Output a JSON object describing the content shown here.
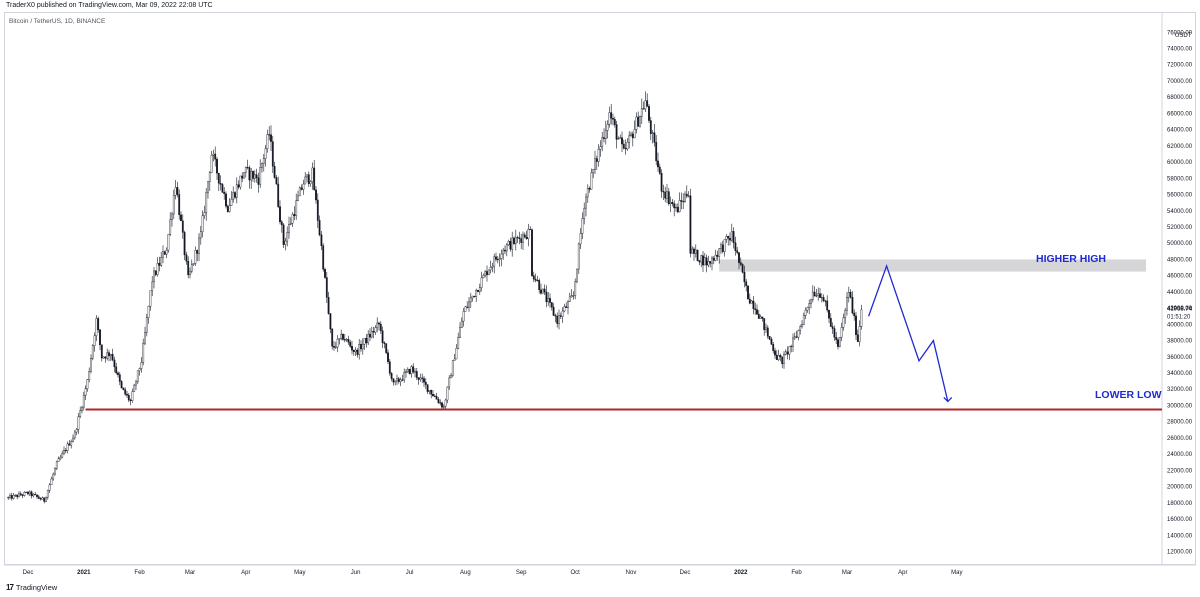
{
  "header": {
    "published": "TraderX0 published on TradingView.com, Mar 09, 2022 22:08 UTC",
    "symbol": "Bitcoin / TetherUS, 1D, BINANCE"
  },
  "footer": {
    "brand": "TradingView",
    "logo_glyph": "17"
  },
  "price_scale": {
    "unit": "USDT",
    "current_price": "41958.74",
    "countdown": "01:51:20"
  },
  "annotations": {
    "higher_high": "HIGHER HIGH",
    "lower_low": "LOWER LOW"
  },
  "colors": {
    "up": "#ffffff",
    "down": "#131722",
    "support_line": "#b2242e",
    "resistance_zone": "#d6d6d8",
    "projection": "#1f2bd1"
  },
  "chart_data": {
    "type": "candlestick",
    "title": "Bitcoin / TetherUS, 1D, BINANCE",
    "ylim": [
      10000,
      76000
    ],
    "y_ticks": [
      12000,
      14000,
      16000,
      18000,
      20000,
      22000,
      24000,
      26000,
      28000,
      30000,
      32000,
      34000,
      36000,
      38000,
      40000,
      42000,
      44000,
      46000,
      48000,
      50000,
      52000,
      54000,
      56000,
      58000,
      60000,
      62000,
      64000,
      66000,
      68000,
      70000,
      72000,
      74000
    ],
    "y_tick_labels": [
      "12000.00",
      "14000.00",
      "16000.00",
      "18000.00",
      "20000.00",
      "22000.00",
      "24000.00",
      "26000.00",
      "28000.00",
      "30000.00",
      "32000.00",
      "34000.00",
      "36000.00",
      "38000.00",
      "40000.00",
      "42000.00",
      "44000.00",
      "46000.00",
      "48000.00",
      "50000.00",
      "52000.00",
      "54000.00",
      "56000.00",
      "58000.00",
      "60000.00",
      "62000.00",
      "64000.00",
      "66000.00",
      "68000.00",
      "70000.00",
      "72000.00",
      "74000.00"
    ],
    "top_partial_label": "76000.00",
    "x_tick_labels": [
      "Dec",
      "2021",
      "Feb",
      "Mar",
      "Apr",
      "May",
      "Jun",
      "Jul",
      "Aug",
      "Sep",
      "Oct",
      "Nov",
      "Dec",
      "2022",
      "Feb",
      "Mar",
      "Apr",
      "May"
    ],
    "x_tick_dates": [
      "2020-12-01",
      "2021-01-01",
      "2021-02-01",
      "2021-03-01",
      "2021-04-01",
      "2021-05-01",
      "2021-06-01",
      "2021-07-01",
      "2021-08-01",
      "2021-09-01",
      "2021-10-01",
      "2021-11-01",
      "2021-12-01",
      "2022-01-01",
      "2022-02-01",
      "2022-03-01",
      "2022-04-01",
      "2022-05-01"
    ],
    "price_path": [
      [
        "2020-11-20",
        18600
      ],
      [
        "2020-12-01",
        19200
      ],
      [
        "2020-12-10",
        18300
      ],
      [
        "2020-12-17",
        22800
      ],
      [
        "2020-12-27",
        26500
      ],
      [
        "2021-01-03",
        33000
      ],
      [
        "2021-01-08",
        40500
      ],
      [
        "2021-01-11",
        36000
      ],
      [
        "2021-01-16",
        36500
      ],
      [
        "2021-01-22",
        32000
      ],
      [
        "2021-01-27",
        30500
      ],
      [
        "2021-02-02",
        35500
      ],
      [
        "2021-02-08",
        45500
      ],
      [
        "2021-02-16",
        49500
      ],
      [
        "2021-02-21",
        57500
      ],
      [
        "2021-02-28",
        45500
      ],
      [
        "2021-03-07",
        51000
      ],
      [
        "2021-03-13",
        61000
      ],
      [
        "2021-03-22",
        54500
      ],
      [
        "2021-03-31",
        58800
      ],
      [
        "2021-04-08",
        58000
      ],
      [
        "2021-04-14",
        63500
      ],
      [
        "2021-04-22",
        50000
      ],
      [
        "2021-05-03",
        57500
      ],
      [
        "2021-05-08",
        58500
      ],
      [
        "2021-05-13",
        49500
      ],
      [
        "2021-05-19",
        37000
      ],
      [
        "2021-05-25",
        38500
      ],
      [
        "2021-06-01",
        36500
      ],
      [
        "2021-06-14",
        40000
      ],
      [
        "2021-06-22",
        32500
      ],
      [
        "2021-07-02",
        34500
      ],
      [
        "2021-07-20",
        29800
      ],
      [
        "2021-07-31",
        41500
      ],
      [
        "2021-08-14",
        47000
      ],
      [
        "2021-08-22",
        49300
      ],
      [
        "2021-09-06",
        51500
      ],
      [
        "2021-09-07",
        46500
      ],
      [
        "2021-09-21",
        40500
      ],
      [
        "2021-09-30",
        43500
      ],
      [
        "2021-10-06",
        55000
      ],
      [
        "2021-10-20",
        66000
      ],
      [
        "2021-10-28",
        61000
      ],
      [
        "2021-11-09",
        67500
      ],
      [
        "2021-11-18",
        57000
      ],
      [
        "2021-11-26",
        54000
      ],
      [
        "2021-12-03",
        56500
      ],
      [
        "2021-12-04",
        49000
      ],
      [
        "2021-12-14",
        47500
      ],
      [
        "2021-12-27",
        51000
      ],
      [
        "2022-01-05",
        43500
      ],
      [
        "2022-01-10",
        41800
      ],
      [
        "2022-01-21",
        36000
      ],
      [
        "2022-01-24",
        35500
      ],
      [
        "2022-02-01",
        38600
      ],
      [
        "2022-02-10",
        44000
      ],
      [
        "2022-02-15",
        43800
      ],
      [
        "2022-02-24",
        37000
      ],
      [
        "2022-03-02",
        44200
      ],
      [
        "2022-03-07",
        38000
      ],
      [
        "2022-03-09",
        41958
      ]
    ],
    "support_level": 29500,
    "support_start": "2021-01-02",
    "resistance_zone": {
      "from": 46500,
      "to": 48000,
      "start": "2021-12-20"
    },
    "projection": [
      [
        "2022-03-13",
        41000
      ],
      [
        "2022-03-23",
        47200
      ],
      [
        "2022-04-10",
        35500
      ],
      [
        "2022-04-18",
        38000
      ],
      [
        "2022-04-26",
        30500
      ]
    ]
  }
}
